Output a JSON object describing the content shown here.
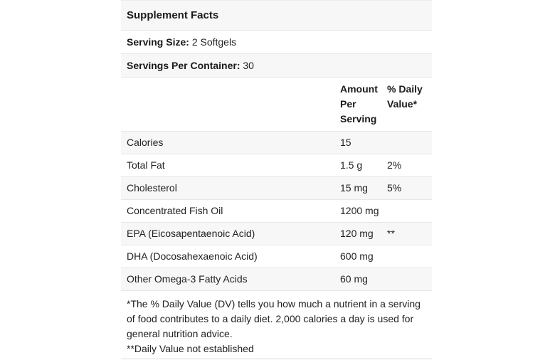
{
  "panel": {
    "title": "Supplement Facts",
    "serving_size": {
      "label": "Serving Size:",
      "value": "2 Softgels"
    },
    "servings_per_container": {
      "label": "Servings Per Container:",
      "value": "30"
    },
    "column_headers": {
      "amount": "Amount Per Serving",
      "daily_value": "% Daily Value*"
    },
    "rows": [
      {
        "name": "Calories",
        "amount": "15",
        "dv": ""
      },
      {
        "name": "Total Fat",
        "amount": "1.5 g",
        "dv": "2%"
      },
      {
        "name": "Cholesterol",
        "amount": "15 mg",
        "dv": "5%"
      },
      {
        "name": "Concentrated Fish Oil",
        "amount": "1200 mg",
        "dv": ""
      },
      {
        "name": "EPA (Eicosapentaenoic Acid)",
        "amount": "120 mg",
        "dv": "**"
      },
      {
        "name": "DHA (Docosahexaenoic Acid)",
        "amount": "600 mg",
        "dv": ""
      },
      {
        "name": "Other Omega-3 Fatty Acids",
        "amount": "60 mg",
        "dv": ""
      }
    ],
    "footnotes": [
      "*The % Daily Value (DV) tells you how much a nutrient in a serving of food contributes to a daily diet. 2,000 calories a day is used for general nutrition advice.",
      "**Daily Value not established"
    ],
    "colors": {
      "stripe_background": "#f7f7f7",
      "row_border": "#e7e7e7",
      "text": "#222222"
    }
  }
}
